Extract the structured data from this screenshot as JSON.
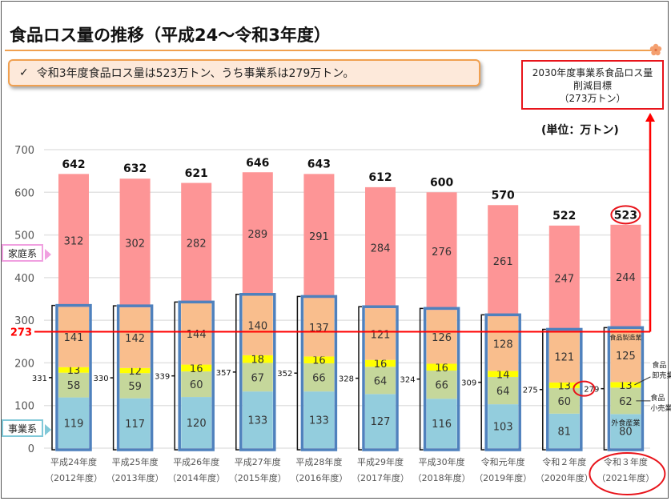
{
  "title": "食品ロス量の推移（平成24～令和3年度）",
  "summary": {
    "check": "✓",
    "text": "令和3年度食品ロス量は523万トン、うち事業系は279万トン。"
  },
  "target_box": {
    "line1": "2030年度事業系食品ロス量",
    "line2": "削減目標",
    "line3": "（273万トン）"
  },
  "unit_label": "(単位：万トン)",
  "legend_callouts": {
    "household": "家庭系",
    "business": "事業系"
  },
  "colors": {
    "household": "#fd9596",
    "manufacturing": "#f9be8d",
    "wholesale": "#ffff00",
    "retail": "#c5d79b",
    "food_service": "#93cddd",
    "business_outline": "#4f81bd",
    "target_red": "#ff0000"
  },
  "chart_data": {
    "type": "bar",
    "stacked": true,
    "title": "食品ロス量の推移（平成24～令和3年度）",
    "ylabel": "万トン",
    "ylim": [
      0,
      700
    ],
    "yticks": [
      0,
      100,
      200,
      300,
      400,
      500,
      600,
      700
    ],
    "grid": true,
    "categories": [
      {
        "line1": "平成24年度",
        "line2": "（2012年度）"
      },
      {
        "line1": "平成25年度",
        "line2": "（2013年度）"
      },
      {
        "line1": "平成26年度",
        "line2": "（2014年度）"
      },
      {
        "line1": "平成27年度",
        "line2": "（2015年度）"
      },
      {
        "line1": "平成28年度",
        "line2": "（2016年度）"
      },
      {
        "line1": "平成29年度",
        "line2": "（2017年度）"
      },
      {
        "line1": "平成30年度",
        "line2": "（2018年度）"
      },
      {
        "line1": "令和元年度",
        "line2": "（2019年度）"
      },
      {
        "line1": "令和２年度",
        "line2": "（2020年度）"
      },
      {
        "line1": "令和３年度",
        "line2": "（2021年度）"
      }
    ],
    "series": [
      {
        "name": "外食産業",
        "key": "food_service",
        "values": [
          119,
          117,
          120,
          133,
          133,
          127,
          116,
          103,
          81,
          80
        ]
      },
      {
        "name": "食品小売業",
        "key": "retail",
        "values": [
          58,
          59,
          60,
          67,
          66,
          64,
          66,
          64,
          60,
          62
        ]
      },
      {
        "name": "食品卸売業",
        "key": "wholesale",
        "values": [
          13,
          12,
          16,
          18,
          16,
          16,
          16,
          14,
          13,
          13
        ]
      },
      {
        "name": "食品製造業",
        "key": "manufacturing",
        "values": [
          141,
          142,
          144,
          140,
          137,
          121,
          126,
          128,
          121,
          125
        ]
      },
      {
        "name": "家庭系",
        "key": "household",
        "values": [
          312,
          302,
          282,
          289,
          291,
          284,
          276,
          261,
          247,
          244
        ]
      }
    ],
    "business_totals": [
      331,
      330,
      339,
      357,
      352,
      328,
      324,
      309,
      275,
      279
    ],
    "totals": [
      642,
      632,
      621,
      646,
      643,
      612,
      600,
      570,
      522,
      523
    ],
    "target_line": {
      "value": 273,
      "label": "273"
    },
    "series_annotations": {
      "manufacturing": "食品製造業",
      "wholesale": "食品\n卸売業",
      "retail": "食品\n小売業",
      "food_service": "外食産業"
    },
    "highlighted_index": 9
  }
}
